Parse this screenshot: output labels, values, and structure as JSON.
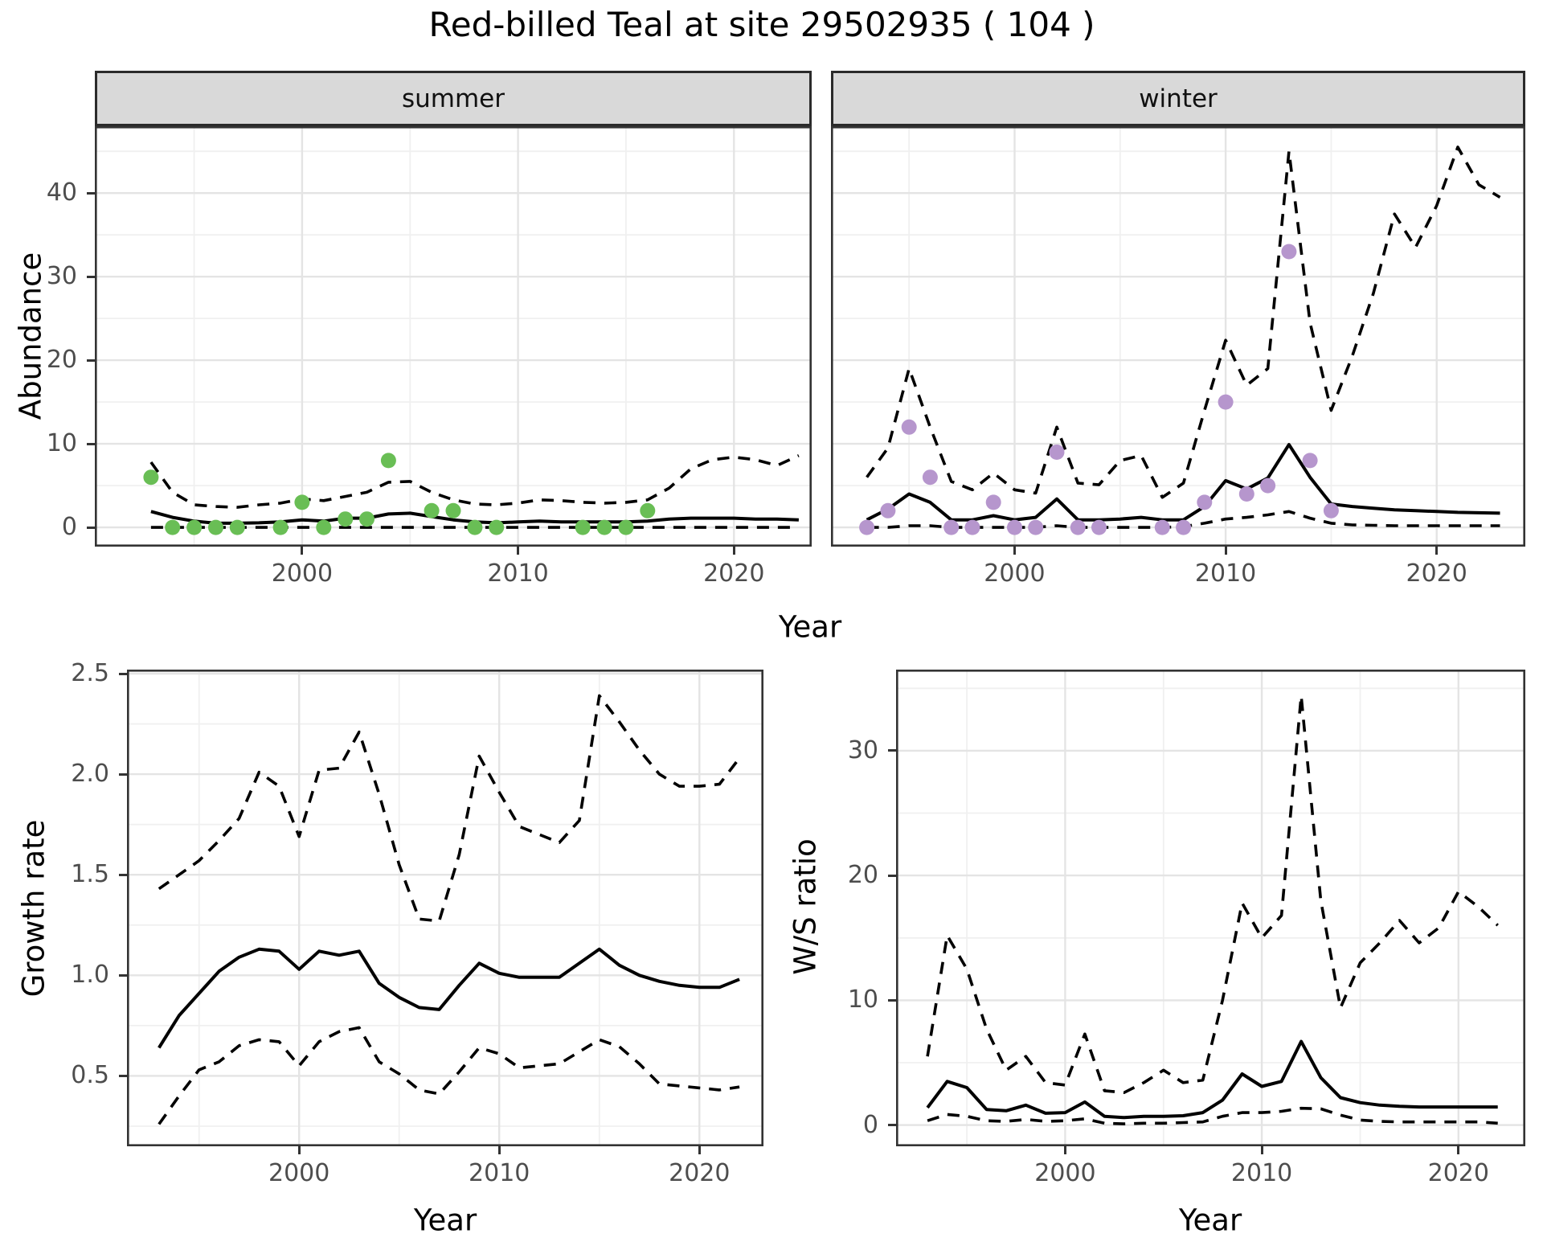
{
  "title": "Red-billed Teal at site 29502935 ( 104 )",
  "labels": {
    "abundance": "Abundance",
    "year": "Year",
    "growth_rate": "Growth rate",
    "ws_ratio": "W/S ratio"
  },
  "colors": {
    "points_summer": "#69be55",
    "points_winter": "#b696cd",
    "line": "#000000",
    "grid_major": "#e4e4e4",
    "grid_minor": "#f0f0f0",
    "panel_border": "#333333",
    "strip_bg": "#d9d9d9",
    "tick": "#333333",
    "tick_label": "#4d4d4d"
  },
  "chart_data": [
    {
      "id": "summer-abundance",
      "type": "line",
      "facet_label": "summer",
      "xlabel": "Year",
      "ylabel": "Abundance",
      "x_start": 1993,
      "xlim": [
        1990.4,
        2023.6
      ],
      "ylim": [
        -2.3,
        48
      ],
      "xticks": [
        2000,
        2010,
        2020
      ],
      "xtick_labels": [
        "2000",
        "2010",
        "2020"
      ],
      "xminor": [
        1995,
        2005,
        2015
      ],
      "yticks": [
        0,
        10,
        20,
        30,
        40
      ],
      "ytick_labels": [
        "0",
        "10",
        "20",
        "30",
        "40"
      ],
      "yminor": [
        5,
        15,
        25,
        35,
        45
      ],
      "grid": true,
      "legend": "none",
      "series": [
        {
          "name": "fit",
          "style": "solid",
          "values": [
            1.9,
            1.2,
            0.75,
            0.5,
            0.5,
            0.55,
            0.65,
            0.9,
            0.75,
            1.1,
            1.1,
            1.6,
            1.7,
            1.3,
            0.9,
            0.65,
            0.55,
            0.65,
            0.75,
            0.65,
            0.65,
            0.65,
            0.65,
            0.75,
            1.0,
            1.1,
            1.1,
            1.1,
            1.0,
            1.0,
            0.9
          ]
        },
        {
          "name": "upper-ci",
          "style": "dashed",
          "values": [
            7.8,
            4.2,
            2.7,
            2.5,
            2.4,
            2.7,
            2.9,
            3.4,
            3.2,
            3.7,
            4.2,
            5.4,
            5.5,
            4.2,
            3.3,
            2.8,
            2.7,
            2.9,
            3.3,
            3.2,
            3.0,
            2.9,
            3.0,
            3.3,
            4.7,
            7.0,
            8.1,
            8.4,
            8.1,
            7.4,
            8.6
          ]
        },
        {
          "name": "lower-ci",
          "style": "dashed",
          "values": [
            0,
            0,
            0,
            0,
            0,
            0,
            0,
            0,
            0,
            0,
            0,
            0,
            0,
            0,
            0,
            0,
            0,
            0,
            0,
            0,
            0,
            0,
            0,
            0,
            0,
            0,
            0,
            0,
            0,
            0,
            0
          ]
        }
      ],
      "points": {
        "name": "summer-counts",
        "color": "#69be55",
        "data": [
          [
            1993,
            6
          ],
          [
            1994,
            0
          ],
          [
            1995,
            0
          ],
          [
            1996,
            0
          ],
          [
            1997,
            0
          ],
          [
            1999,
            0
          ],
          [
            2000,
            3
          ],
          [
            2001,
            0
          ],
          [
            2002,
            1
          ],
          [
            2003,
            1
          ],
          [
            2004,
            8
          ],
          [
            2006,
            2
          ],
          [
            2007,
            2
          ],
          [
            2008,
            0
          ],
          [
            2009,
            0
          ],
          [
            2013,
            0
          ],
          [
            2014,
            0
          ],
          [
            2015,
            0
          ],
          [
            2016,
            2
          ]
        ]
      }
    },
    {
      "id": "winter-abundance",
      "type": "line",
      "facet_label": "winter",
      "xlabel": "Year",
      "ylabel": "Abundance",
      "x_start": 1993,
      "xlim": [
        1991.3,
        2024.2
      ],
      "ylim": [
        -2.3,
        48
      ],
      "xticks": [
        2000,
        2010,
        2020
      ],
      "xtick_labels": [
        "2000",
        "2010",
        "2020"
      ],
      "xminor": [
        1995,
        2005,
        2015
      ],
      "yticks": [
        0,
        10,
        20,
        30,
        40
      ],
      "ytick_labels": [
        "0",
        "10",
        "20",
        "30",
        "40"
      ],
      "yminor": [
        5,
        15,
        25,
        35,
        45
      ],
      "grid": true,
      "legend": "none",
      "series": [
        {
          "name": "fit",
          "style": "solid",
          "values": [
            0.9,
            2.2,
            4.0,
            3.0,
            0.9,
            0.9,
            1.4,
            0.9,
            1.2,
            3.4,
            0.9,
            0.9,
            1.0,
            1.2,
            0.9,
            0.9,
            2.5,
            5.6,
            4.6,
            5.9,
            9.9,
            6.0,
            2.8,
            2.5,
            2.3,
            2.1,
            2.0,
            1.9,
            1.8,
            1.75,
            1.7
          ]
        },
        {
          "name": "upper-ci",
          "style": "dashed",
          "values": [
            6,
            9.5,
            19,
            12,
            5.5,
            4.5,
            6.5,
            4.5,
            4.1,
            12,
            5.3,
            5.1,
            8,
            8.6,
            3.6,
            5.3,
            14,
            22.4,
            17,
            19,
            45,
            24.5,
            14,
            20.5,
            28,
            37.5,
            33.5,
            38.5,
            45.5,
            41,
            39.5
          ]
        },
        {
          "name": "lower-ci",
          "style": "dashed",
          "values": [
            0,
            0,
            0.2,
            0.2,
            0,
            0,
            0,
            0,
            0,
            0.2,
            0,
            0,
            0,
            0,
            0,
            0.1,
            0.5,
            1.0,
            1.2,
            1.5,
            1.9,
            1.1,
            0.5,
            0.3,
            0.25,
            0.2,
            0.2,
            0.2,
            0.2,
            0.2,
            0.2
          ]
        }
      ],
      "points": {
        "name": "winter-counts",
        "color": "#b696cd",
        "data": [
          [
            1993,
            0
          ],
          [
            1994,
            2
          ],
          [
            1995,
            12
          ],
          [
            1996,
            6
          ],
          [
            1997,
            0
          ],
          [
            1998,
            0
          ],
          [
            1999,
            3
          ],
          [
            2000,
            0
          ],
          [
            2001,
            0
          ],
          [
            2002,
            9
          ],
          [
            2003,
            0
          ],
          [
            2004,
            0
          ],
          [
            2007,
            0
          ],
          [
            2008,
            0
          ],
          [
            2009,
            3
          ],
          [
            2010,
            15
          ],
          [
            2011,
            4
          ],
          [
            2012,
            5
          ],
          [
            2013,
            33
          ],
          [
            2014,
            8
          ],
          [
            2015,
            2
          ]
        ]
      }
    },
    {
      "id": "growth-rate",
      "type": "line",
      "facet_label": "",
      "xlabel": "Year",
      "ylabel": "Growth rate",
      "x_start": 1993,
      "xlim": [
        1991.4,
        2023.2
      ],
      "ylim": [
        0.15,
        2.52
      ],
      "xticks": [
        2000,
        2010,
        2020
      ],
      "xtick_labels": [
        "2000",
        "2010",
        "2020"
      ],
      "xminor": [
        1995,
        2005,
        2015
      ],
      "yticks": [
        0.5,
        1.0,
        1.5,
        2.0,
        2.5
      ],
      "ytick_labels": [
        "0.5",
        "1.0",
        "1.5",
        "2.0",
        "2.5"
      ],
      "yminor": [
        0.25,
        0.75,
        1.25,
        1.75,
        2.25
      ],
      "grid": true,
      "legend": "none",
      "series": [
        {
          "name": "fit",
          "style": "solid",
          "values": [
            0.64,
            0.8,
            0.91,
            1.02,
            1.09,
            1.13,
            1.12,
            1.03,
            1.12,
            1.1,
            1.12,
            0.96,
            0.89,
            0.84,
            0.83,
            0.95,
            1.06,
            1.01,
            0.99,
            0.99,
            0.99,
            1.06,
            1.13,
            1.05,
            1.0,
            0.97,
            0.95,
            0.94,
            0.94,
            0.98
          ]
        },
        {
          "name": "upper-ci",
          "style": "dashed",
          "values": [
            1.43,
            1.5,
            1.57,
            1.67,
            1.78,
            2.01,
            1.94,
            1.69,
            2.02,
            2.03,
            2.21,
            1.9,
            1.55,
            1.28,
            1.27,
            1.6,
            2.09,
            1.91,
            1.74,
            1.7,
            1.66,
            1.77,
            2.39,
            2.26,
            2.12,
            2.0,
            1.94,
            1.94,
            1.95,
            2.08
          ]
        },
        {
          "name": "lower-ci",
          "style": "dashed",
          "values": [
            0.26,
            0.4,
            0.53,
            0.57,
            0.65,
            0.68,
            0.67,
            0.55,
            0.67,
            0.72,
            0.74,
            0.57,
            0.51,
            0.43,
            0.41,
            0.52,
            0.64,
            0.61,
            0.54,
            0.55,
            0.56,
            0.62,
            0.68,
            0.645,
            0.56,
            0.46,
            0.45,
            0.44,
            0.43,
            0.445
          ]
        }
      ],
      "points": null
    },
    {
      "id": "ws-ratio",
      "type": "line",
      "facet_label": "",
      "xlabel": "Year",
      "ylabel": "W/S ratio",
      "x_start": 1993,
      "xlim": [
        1991.4,
        2023.4
      ],
      "ylim": [
        -1.7,
        36.5
      ],
      "xticks": [
        2000,
        2010,
        2020
      ],
      "xtick_labels": [
        "2000",
        "2010",
        "2020"
      ],
      "xminor": [
        1995,
        2005,
        2015
      ],
      "yticks": [
        0,
        10,
        20,
        30
      ],
      "ytick_labels": [
        "0",
        "10",
        "20",
        "30"
      ],
      "yminor": [
        5,
        15,
        25,
        35
      ],
      "grid": true,
      "legend": "none",
      "series": [
        {
          "name": "fit",
          "style": "solid",
          "values": [
            1.4,
            3.5,
            3.0,
            1.25,
            1.15,
            1.6,
            0.95,
            1.0,
            1.85,
            0.7,
            0.6,
            0.7,
            0.7,
            0.75,
            1.0,
            2.0,
            4.1,
            3.1,
            3.5,
            6.7,
            3.8,
            2.2,
            1.8,
            1.6,
            1.5,
            1.45,
            1.45,
            1.45,
            1.45,
            1.45
          ]
        },
        {
          "name": "upper-ci",
          "style": "dashed",
          "values": [
            5.5,
            15.2,
            12.5,
            7.7,
            4.4,
            5.5,
            3.4,
            3.2,
            7.3,
            2.75,
            2.6,
            3.4,
            4.4,
            3.4,
            3.6,
            10,
            17.8,
            15,
            16.8,
            34.4,
            18,
            9.4,
            13,
            14.6,
            16.4,
            14.6,
            15.8,
            18.7,
            17.5,
            16
          ]
        },
        {
          "name": "lower-ci",
          "style": "dashed",
          "values": [
            0.35,
            0.85,
            0.7,
            0.35,
            0.3,
            0.45,
            0.3,
            0.35,
            0.5,
            0.15,
            0.1,
            0.15,
            0.15,
            0.2,
            0.25,
            0.7,
            1.0,
            1.0,
            1.1,
            1.35,
            1.3,
            0.8,
            0.4,
            0.3,
            0.25,
            0.25,
            0.25,
            0.25,
            0.25,
            0.15
          ]
        }
      ],
      "points": null
    }
  ]
}
